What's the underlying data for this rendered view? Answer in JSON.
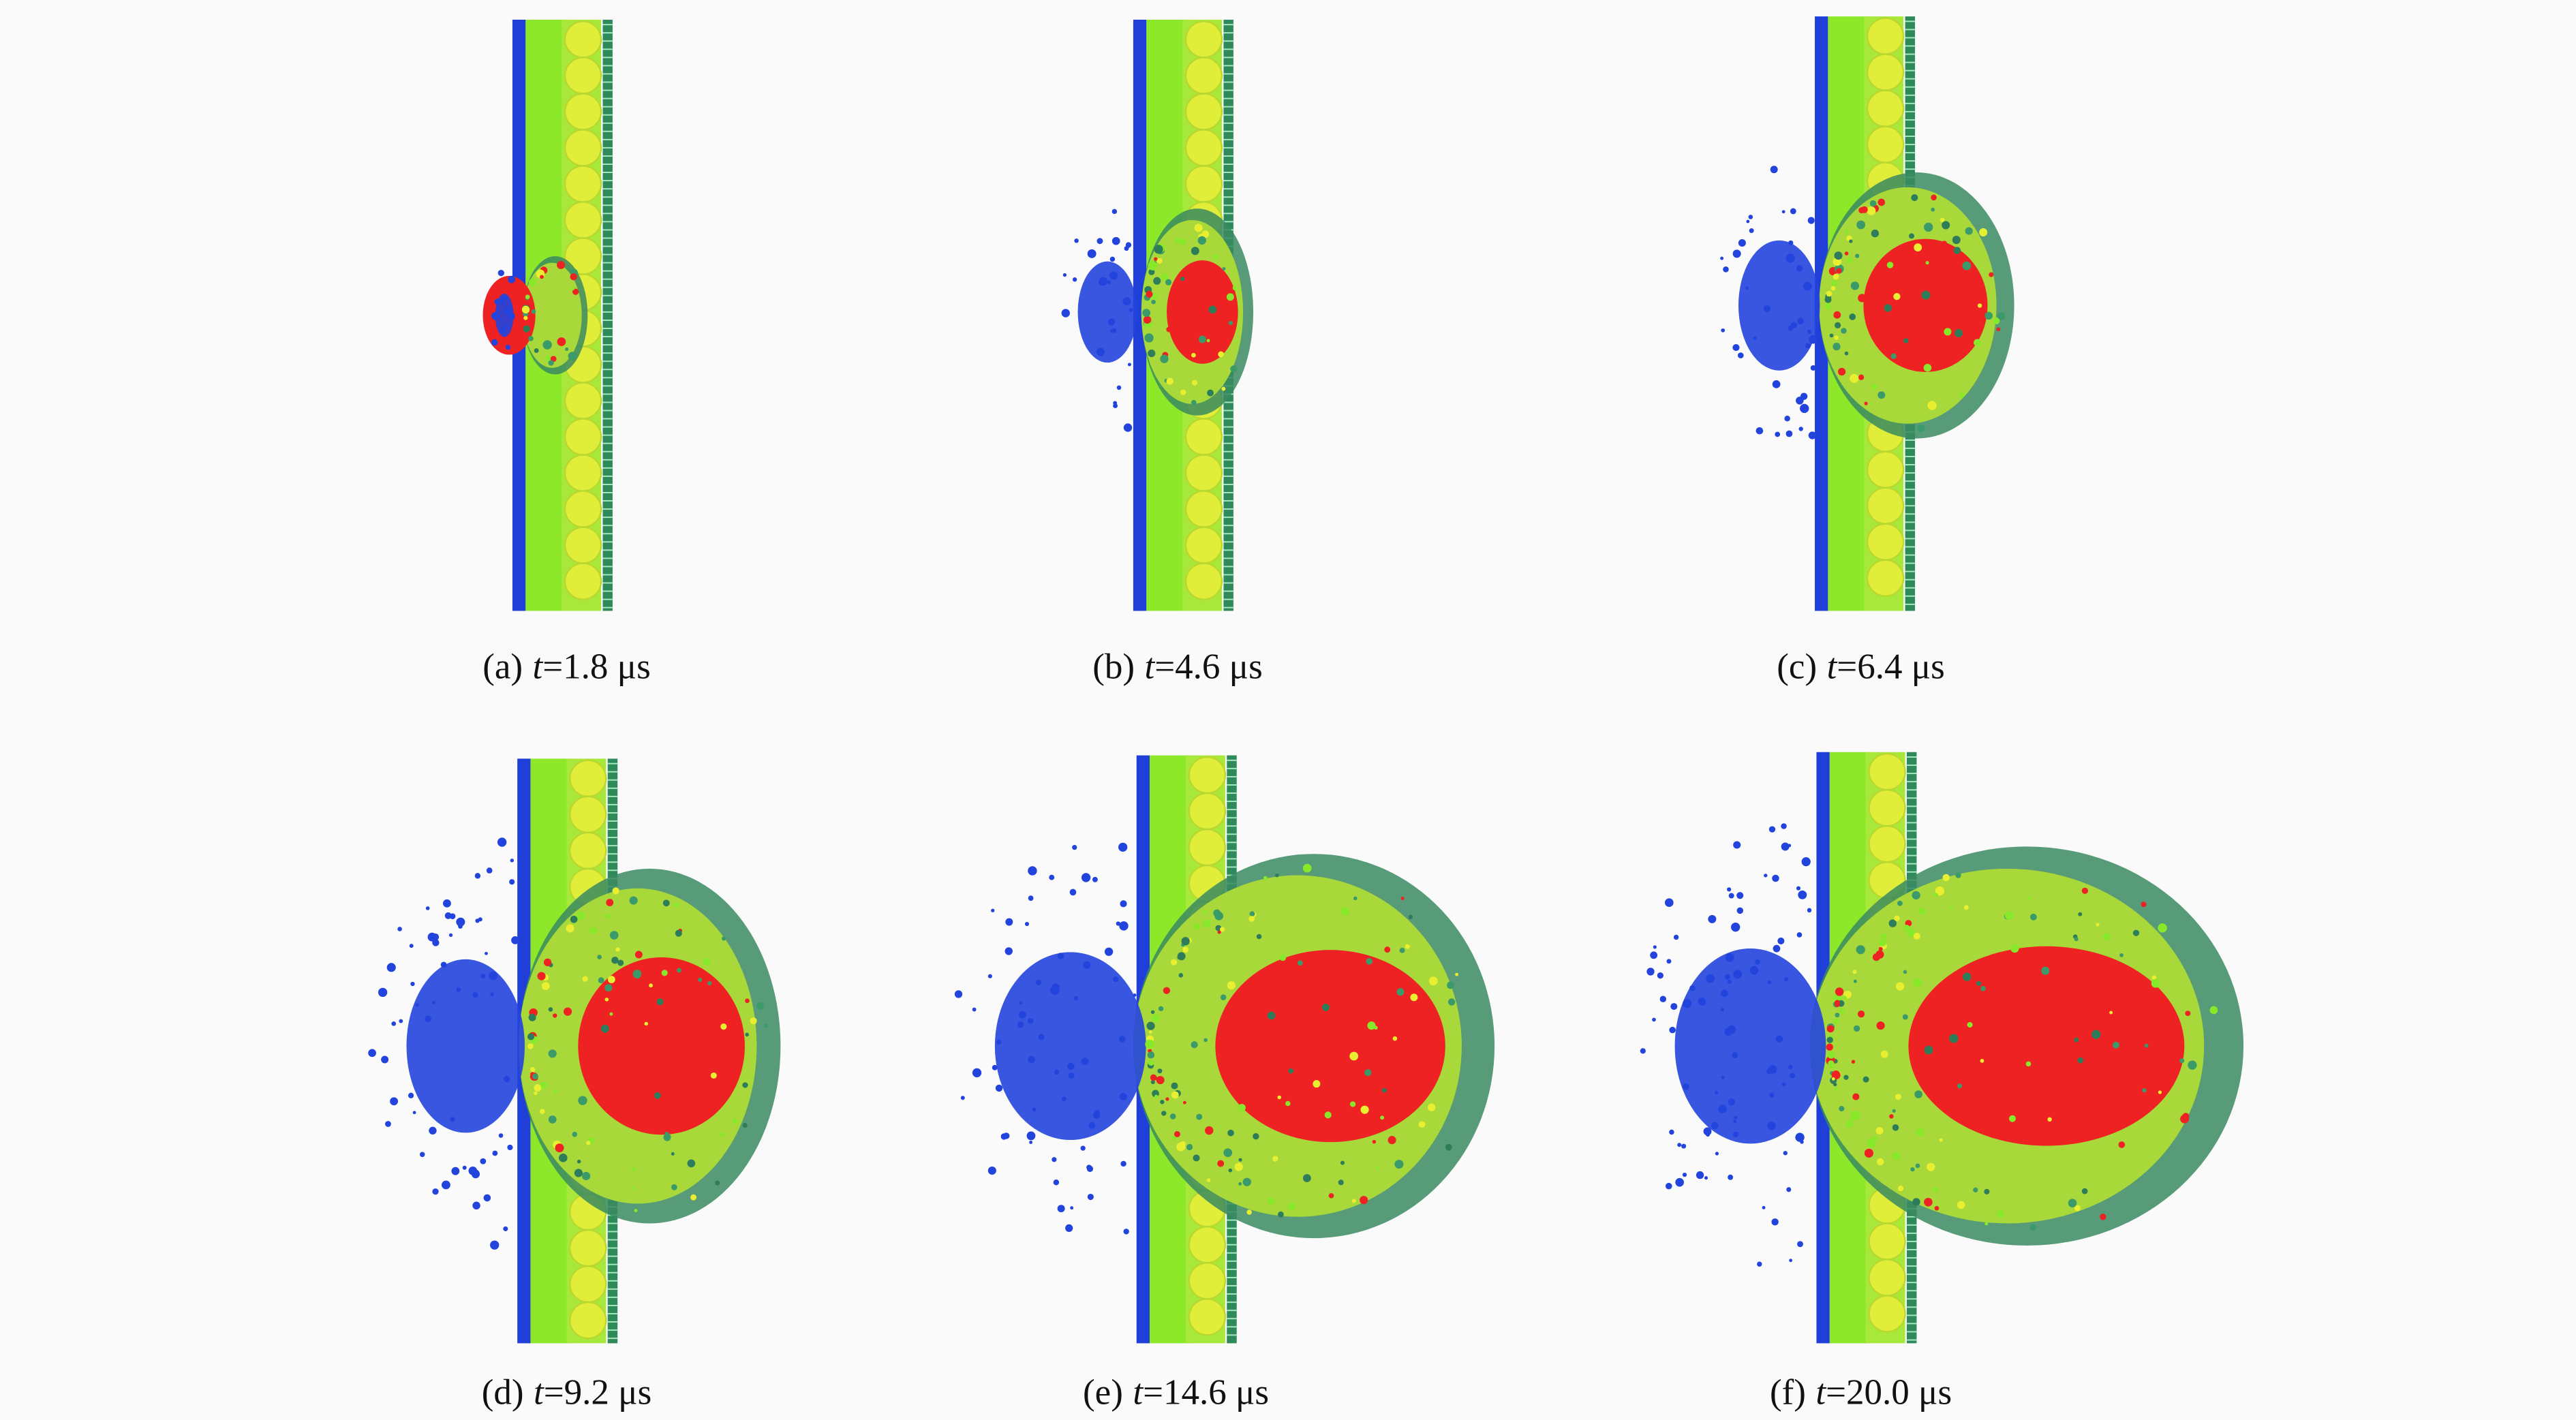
{
  "panels": [
    {
      "label": "(a)",
      "symbol": "t",
      "time": "=1.8 μs"
    },
    {
      "label": "(b)",
      "symbol": "t",
      "time": "=4.6 μs"
    },
    {
      "label": "(c)",
      "symbol": "t",
      "time": "=6.4 μs"
    },
    {
      "label": "(d)",
      "symbol": "t",
      "time": "=9.2 μs"
    },
    {
      "label": "(e)",
      "symbol": "t",
      "time": "=14.6 μs"
    },
    {
      "label": "(f)",
      "symbol": "t",
      "time": "=20.0 μs"
    }
  ]
}
